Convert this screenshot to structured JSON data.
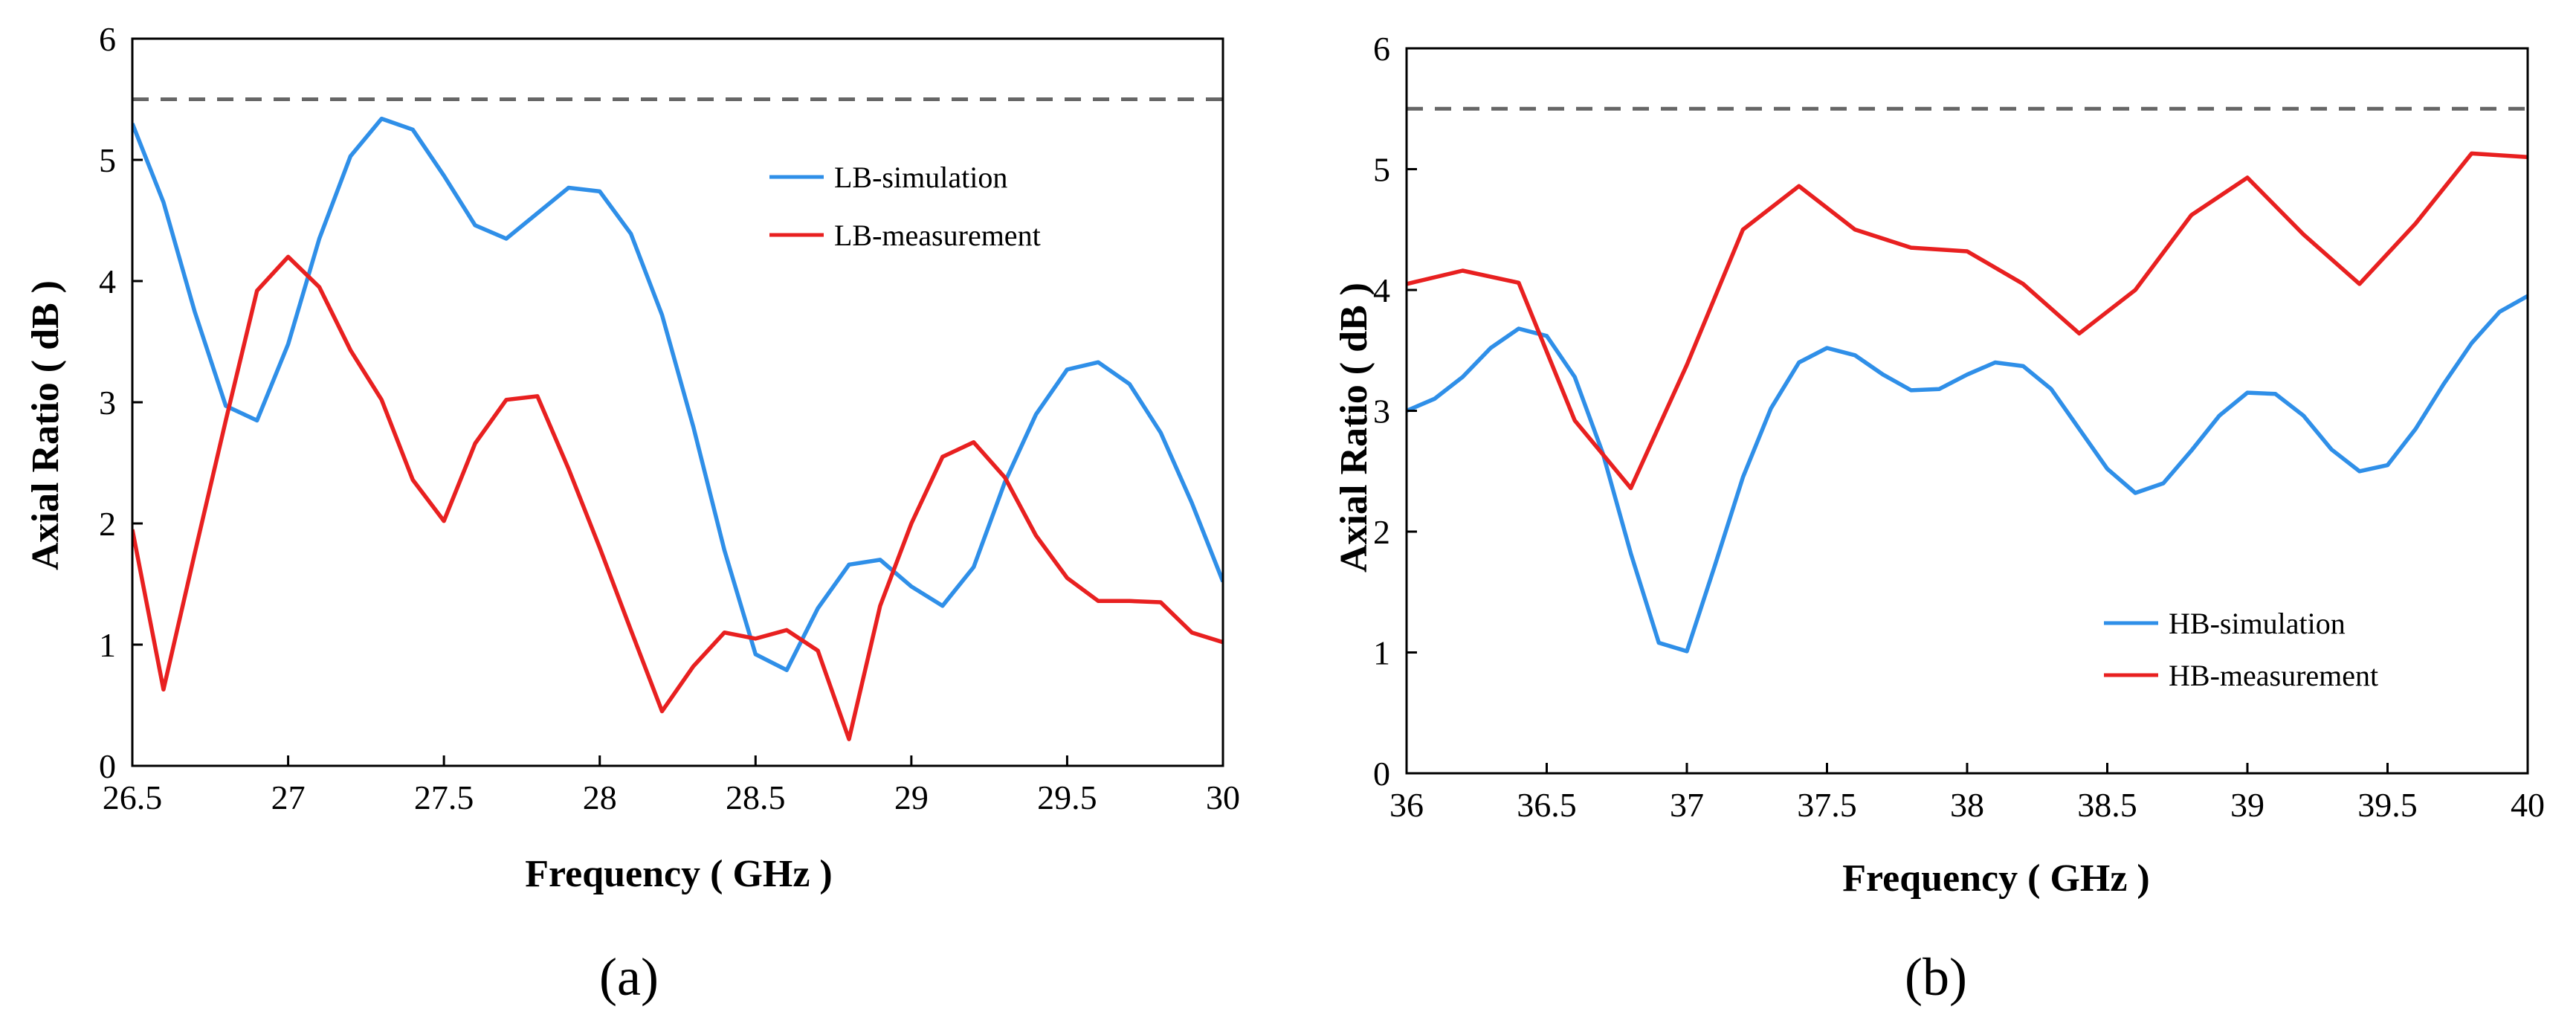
{
  "chart_data": [
    {
      "type": "line",
      "panel_label": "(a)",
      "xlabel": "Frequency ( GHz )",
      "ylabel": "Axial Ratio ( dB )",
      "xlim": [
        26.5,
        30
      ],
      "ylim": [
        0,
        6
      ],
      "xticks": [
        26.5,
        27,
        27.5,
        28,
        28.5,
        29,
        29.5,
        30
      ],
      "yticks": [
        0,
        1,
        2,
        3,
        4,
        5,
        6
      ],
      "reference_line": {
        "y": 5.5,
        "style": "dashed",
        "color": "#666666"
      },
      "legend_position": "top-right",
      "series": [
        {
          "name": "LB-simulation",
          "color": "#2f8fe8",
          "x": [
            26.5,
            26.6,
            26.7,
            26.8,
            26.9,
            27.0,
            27.1,
            27.2,
            27.3,
            27.4,
            27.5,
            27.6,
            27.7,
            27.8,
            27.9,
            28.0,
            28.1,
            28.2,
            28.3,
            28.4,
            28.5,
            28.6,
            28.7,
            28.8,
            28.9,
            29.0,
            29.1,
            29.2,
            29.3,
            29.4,
            29.5,
            29.6,
            29.7,
            29.8,
            29.9,
            30.0
          ],
          "y": [
            5.3,
            4.65,
            3.75,
            2.97,
            2.85,
            3.48,
            4.35,
            5.03,
            5.34,
            5.25,
            4.87,
            4.46,
            4.35,
            4.56,
            4.77,
            4.74,
            4.39,
            3.72,
            2.8,
            1.78,
            0.92,
            0.79,
            1.3,
            1.66,
            1.7,
            1.48,
            1.32,
            1.64,
            2.34,
            2.9,
            3.27,
            3.33,
            3.15,
            2.75,
            2.17,
            1.52
          ]
        },
        {
          "name": "LB-measurement",
          "color": "#e82020",
          "x": [
            26.5,
            26.6,
            26.7,
            26.8,
            26.9,
            27.0,
            27.1,
            27.2,
            27.3,
            27.4,
            27.5,
            27.6,
            27.7,
            27.8,
            27.9,
            28.0,
            28.1,
            28.2,
            28.3,
            28.4,
            28.5,
            28.6,
            28.7,
            28.8,
            28.9,
            29.0,
            29.1,
            29.2,
            29.3,
            29.4,
            29.5,
            29.6,
            29.7,
            29.8,
            29.9,
            30.0
          ],
          "y": [
            1.95,
            0.63,
            1.75,
            2.85,
            3.92,
            4.2,
            3.95,
            3.43,
            3.02,
            2.36,
            2.02,
            2.66,
            3.02,
            3.05,
            2.45,
            1.8,
            1.12,
            0.45,
            0.82,
            1.1,
            1.05,
            1.12,
            0.95,
            0.22,
            1.32,
            2.0,
            2.55,
            2.67,
            2.38,
            1.9,
            1.55,
            1.36,
            1.36,
            1.35,
            1.1,
            1.02
          ]
        }
      ]
    },
    {
      "type": "line",
      "panel_label": "(b)",
      "xlabel": "Frequency ( GHz )",
      "ylabel": "Axial Ratio ( dB )",
      "xlim": [
        36,
        40
      ],
      "ylim": [
        0,
        6
      ],
      "xticks": [
        36,
        36.5,
        37,
        37.5,
        38,
        38.5,
        39,
        39.5,
        40
      ],
      "yticks": [
        0,
        1,
        2,
        3,
        4,
        5,
        6
      ],
      "reference_line": {
        "y": 5.5,
        "style": "dashed",
        "color": "#666666"
      },
      "legend_position": "bottom-right",
      "series": [
        {
          "name": "HB-simulation",
          "color": "#2f8fe8",
          "x": [
            36.0,
            36.1,
            36.2,
            36.3,
            36.4,
            36.5,
            36.6,
            36.7,
            36.8,
            36.9,
            37.0,
            37.1,
            37.2,
            37.3,
            37.4,
            37.5,
            37.6,
            37.7,
            37.8,
            37.9,
            38.0,
            38.1,
            38.2,
            38.3,
            38.4,
            38.5,
            38.6,
            38.7,
            38.8,
            38.9,
            39.0,
            39.1,
            39.2,
            39.3,
            39.4,
            39.5,
            39.6,
            39.7,
            39.8,
            39.9,
            40.0
          ],
          "y": [
            3.0,
            3.1,
            3.28,
            3.52,
            3.68,
            3.62,
            3.28,
            2.65,
            1.82,
            1.08,
            1.01,
            1.72,
            2.45,
            3.02,
            3.4,
            3.52,
            3.46,
            3.3,
            3.17,
            3.18,
            3.3,
            3.4,
            3.37,
            3.18,
            2.85,
            2.52,
            2.32,
            2.4,
            2.67,
            2.96,
            3.15,
            3.14,
            2.96,
            2.68,
            2.5,
            2.55,
            2.85,
            3.22,
            3.56,
            3.82,
            3.95
          ]
        },
        {
          "name": "HB-measurement",
          "color": "#e82020",
          "x": [
            36.0,
            36.2,
            36.4,
            36.6,
            36.8,
            37.0,
            37.2,
            37.4,
            37.6,
            37.8,
            38.0,
            38.2,
            38.4,
            38.6,
            38.8,
            39.0,
            39.2,
            39.4,
            39.6,
            39.8,
            40.0
          ],
          "y": [
            4.05,
            4.16,
            4.06,
            2.92,
            2.36,
            3.38,
            4.5,
            4.86,
            4.5,
            4.35,
            4.32,
            4.05,
            3.64,
            4.0,
            4.62,
            4.93,
            4.46,
            4.05,
            4.55,
            5.13,
            5.1
          ]
        }
      ]
    }
  ]
}
